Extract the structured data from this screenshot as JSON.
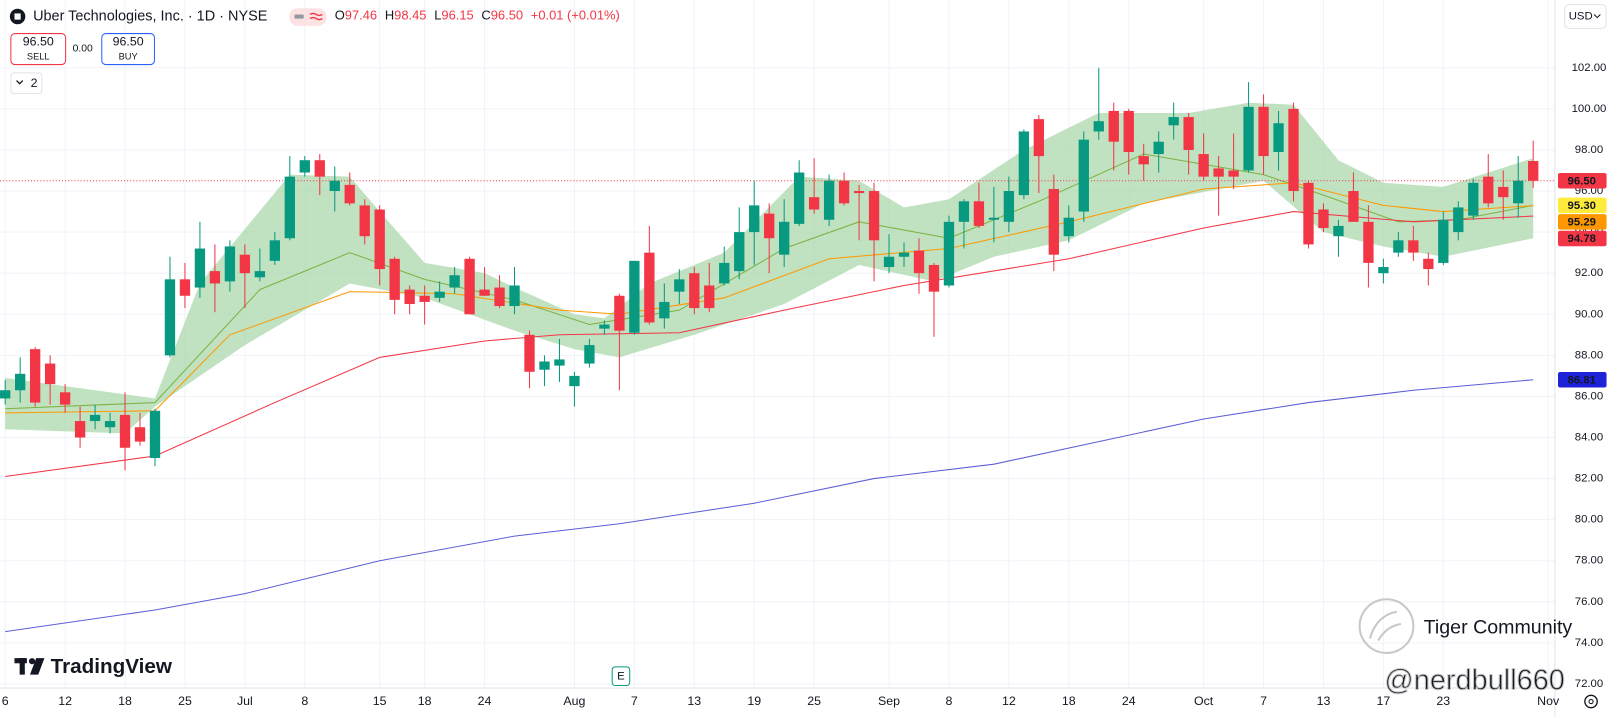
{
  "header": {
    "title": "Uber Technologies, Inc. · 1D · NYSE",
    "ohlc": [
      {
        "label": "O",
        "value": 97.46
      },
      {
        "label": "H",
        "value": 98.45
      },
      {
        "label": "L",
        "value": 96.15
      },
      {
        "label": "C",
        "value": 96.5,
        "text": "96.50"
      }
    ],
    "change": "+0.01 (+0.01%)",
    "sell": {
      "price": "96.50",
      "label": "SELL"
    },
    "spread": "0.00",
    "buy": {
      "price": "96.50",
      "label": "BUY"
    },
    "indicators": "2",
    "currency": "USD"
  },
  "branding": {
    "logo": "TradingView",
    "earnings": "E",
    "watermark": "Tiger Community",
    "handle": "@nerdbull660"
  },
  "chart_data": {
    "type": "candlestick",
    "categories": [
      "6",
      null,
      null,
      null,
      "12",
      null,
      null,
      null,
      "18",
      null,
      null,
      null,
      "25",
      null,
      null,
      null,
      "Jul",
      null,
      null,
      null,
      "8",
      null,
      null,
      null,
      null,
      "15",
      null,
      null,
      "18",
      null,
      null,
      null,
      "24",
      null,
      null,
      null,
      null,
      null,
      "Aug",
      null,
      null,
      null,
      "7",
      null,
      null,
      null,
      "13",
      null,
      null,
      null,
      "19",
      null,
      null,
      null,
      "25",
      null,
      null,
      null,
      null,
      "Sep",
      null,
      null,
      null,
      "8",
      null,
      null,
      null,
      "12",
      null,
      null,
      null,
      "18",
      null,
      null,
      null,
      "24",
      null,
      null,
      null,
      null,
      "Oct",
      null,
      null,
      null,
      "7",
      null,
      null,
      null,
      "13",
      null,
      null,
      null,
      "17",
      null,
      null,
      null,
      "23",
      null,
      null,
      null,
      null,
      null,
      null,
      "Nov"
    ],
    "open": [
      85.9,
      86.3,
      88.3,
      87.6,
      86.2,
      84.8,
      84.8,
      84.5,
      85.1,
      84.5,
      83.0,
      88.0,
      91.7,
      91.3,
      92.1,
      91.6,
      92.9,
      91.8,
      92.6,
      93.7,
      96.9,
      97.5,
      96.0,
      96.3,
      95.3,
      95.1,
      92.7,
      91.2,
      90.9,
      90.8,
      91.3,
      92.7,
      91.2,
      91.3,
      90.4,
      89.0,
      87.3,
      87.5,
      86.5,
      87.6,
      89.3,
      90.9,
      89.1,
      93.0,
      89.8,
      91.1,
      92.0,
      91.4,
      91.5,
      92.1,
      94.0,
      94.9,
      92.9,
      94.4,
      95.7,
      94.6,
      96.5,
      96.0,
      96.0,
      92.3,
      92.8,
      93.1,
      92.4,
      91.4,
      94.5,
      95.5,
      94.6,
      94.5,
      95.8,
      99.5,
      96.1,
      93.8,
      95.0,
      98.9,
      99.9,
      99.9,
      97.7,
      97.8,
      99.2,
      99.6,
      97.8,
      97.1,
      97.0,
      97.0,
      100.1,
      97.9,
      100.0,
      96.4,
      95.1,
      93.8,
      96.0,
      94.5,
      92.0,
      93.0,
      93.6,
      92.7,
      92.5,
      94.0,
      94.8,
      96.7,
      96.2,
      95.4,
      97.46,
      null
    ],
    "high": [
      86.8,
      87.9,
      88.4,
      88.0,
      86.6,
      85.5,
      85.6,
      85.2,
      86.2,
      85.2,
      85.4,
      92.8,
      92.5,
      94.5,
      93.4,
      93.6,
      93.4,
      93.2,
      94.0,
      97.7,
      97.7,
      97.8,
      97.2,
      96.9,
      95.6,
      95.3,
      92.8,
      91.4,
      91.4,
      91.6,
      92.3,
      92.8,
      92.3,
      91.9,
      92.3,
      89.2,
      88.0,
      88.8,
      87.2,
      88.8,
      89.7,
      91.0,
      92.6,
      94.3,
      91.5,
      92.2,
      92.3,
      92.5,
      93.3,
      95.2,
      96.5,
      95.4,
      95.6,
      97.5,
      97.6,
      96.8,
      96.9,
      96.3,
      96.4,
      93.9,
      93.5,
      93.7,
      92.5,
      94.8,
      95.6,
      96.4,
      96.2,
      96.7,
      99.0,
      99.7,
      96.8,
      95.3,
      98.9,
      102.0,
      100.3,
      100.0,
      98.3,
      98.9,
      100.3,
      99.8,
      98.8,
      97.7,
      98.8,
      101.3,
      100.7,
      99.9,
      100.3,
      96.5,
      95.4,
      94.6,
      96.9,
      95.3,
      92.7,
      94.0,
      94.3,
      93.0,
      95.0,
      95.5,
      96.6,
      97.8,
      97.0,
      97.7,
      98.45,
      null
    ],
    "low": [
      85.6,
      85.7,
      85.5,
      85.6,
      85.2,
      83.5,
      84.4,
      84.2,
      82.4,
      83.6,
      82.6,
      87.9,
      90.3,
      90.8,
      90.1,
      91.1,
      90.3,
      91.6,
      92.4,
      93.6,
      96.7,
      95.8,
      95.0,
      95.3,
      93.4,
      91.4,
      90.0,
      90.0,
      89.5,
      90.6,
      91.0,
      90.0,
      90.9,
      90.3,
      90.0,
      86.4,
      86.5,
      86.7,
      85.5,
      87.4,
      89.0,
      86.3,
      89.0,
      89.5,
      89.3,
      90.5,
      90.0,
      90.1,
      91.4,
      91.7,
      92.4,
      92.0,
      92.3,
      94.3,
      94.9,
      94.3,
      95.3,
      93.6,
      91.6,
      92.0,
      92.3,
      91.0,
      88.9,
      91.3,
      93.2,
      94.2,
      93.5,
      94.0,
      95.6,
      95.9,
      92.1,
      93.5,
      94.5,
      98.5,
      97.0,
      96.8,
      96.5,
      96.9,
      98.5,
      96.8,
      96.5,
      94.8,
      96.1,
      96.9,
      96.8,
      97.0,
      95.5,
      93.2,
      94.0,
      92.8,
      94.5,
      91.3,
      91.5,
      92.8,
      92.6,
      91.4,
      92.4,
      93.6,
      94.6,
      95.2,
      94.6,
      94.7,
      96.15,
      null
    ],
    "close": [
      86.3,
      87.1,
      85.7,
      86.6,
      85.6,
      84.0,
      85.1,
      84.8,
      83.5,
      83.8,
      85.3,
      91.7,
      90.9,
      93.2,
      91.5,
      93.3,
      92.0,
      92.1,
      93.6,
      96.7,
      97.5,
      96.7,
      96.5,
      95.4,
      93.8,
      92.2,
      90.7,
      90.5,
      90.6,
      91.1,
      91.9,
      90.0,
      90.9,
      90.4,
      91.4,
      87.2,
      87.7,
      87.8,
      87.0,
      88.5,
      89.5,
      89.2,
      92.6,
      89.6,
      90.6,
      91.7,
      90.3,
      90.3,
      92.5,
      94.0,
      95.3,
      93.7,
      94.5,
      96.9,
      95.1,
      96.5,
      95.4,
      95.9,
      93.6,
      92.8,
      93.0,
      92.0,
      91.1,
      94.5,
      95.5,
      94.3,
      94.7,
      96.0,
      98.9,
      97.7,
      92.9,
      94.7,
      98.5,
      99.4,
      98.4,
      97.9,
      97.3,
      98.4,
      99.6,
      98.0,
      96.7,
      96.7,
      96.7,
      100.1,
      97.7,
      99.3,
      96.0,
      93.4,
      94.2,
      94.3,
      94.5,
      92.5,
      92.3,
      93.6,
      93.0,
      92.2,
      94.6,
      95.2,
      96.4,
      95.4,
      95.7,
      96.5,
      96.5,
      null
    ],
    "up_color": "#089981",
    "down_color": "#f23645",
    "ylim": [
      71.8,
      105.3
    ],
    "yticks": [
      {
        "value": 72,
        "label": "72.00"
      },
      {
        "value": 74,
        "label": "74.00"
      },
      {
        "value": 76,
        "label": "76.00"
      },
      {
        "value": 78,
        "label": "78.00"
      },
      {
        "value": 80,
        "label": "80.00"
      },
      {
        "value": 82,
        "label": "82.00"
      },
      {
        "value": 84,
        "label": "84.00"
      },
      {
        "value": 86,
        "label": "86.00"
      },
      {
        "value": 88,
        "label": "88.00"
      },
      {
        "value": 90,
        "label": "90.00"
      },
      {
        "value": 92,
        "label": "92.00"
      },
      {
        "value": 94,
        "label": "94.00"
      },
      {
        "value": 96,
        "label": "96.00"
      },
      {
        "value": 98,
        "label": "98.00"
      },
      {
        "value": 100,
        "label": "100.00"
      },
      {
        "value": 102,
        "label": "102.00"
      }
    ],
    "grid": true,
    "price_line": {
      "value": 96.5,
      "label": "96.50",
      "color": "#f23645"
    },
    "band": {
      "color": "#a5d6a7",
      "upper": {
        "x": [
          0,
          10,
          13,
          19,
          23,
          25,
          28,
          32,
          34,
          38,
          40,
          43,
          48,
          53,
          57,
          60,
          63,
          68,
          73,
          79,
          83,
          86,
          89,
          92,
          96,
          102
        ],
        "values": [
          86.9,
          85.9,
          91.5,
          96.8,
          96.7,
          95.0,
          92.5,
          92.0,
          91.3,
          90.0,
          89.8,
          91.5,
          93.0,
          96.7,
          96.5,
          95.2,
          95.6,
          98.0,
          99.8,
          99.8,
          100.3,
          100.2,
          97.5,
          96.4,
          96.2,
          97.6
        ]
      },
      "lower": {
        "x": [
          0,
          8,
          10,
          16,
          23,
          28,
          34,
          38,
          41,
          46,
          52,
          57,
          62,
          66,
          71,
          76,
          84,
          88,
          92,
          96,
          102
        ],
        "values": [
          84.4,
          84.2,
          85.5,
          88.5,
          91.5,
          90.8,
          89.2,
          88.3,
          87.9,
          89.0,
          90.5,
          92.4,
          91.6,
          92.8,
          93.6,
          95.4,
          96.5,
          94.0,
          93.3,
          92.8,
          93.7
        ]
      }
    },
    "lines": [
      {
        "color": "#7cb342",
        "x": [
          0,
          10,
          17,
          23,
          28,
          34,
          39,
          45,
          52,
          57,
          63,
          69,
          76,
          84,
          88,
          93,
          97,
          102
        ],
        "values": [
          85.4,
          85.7,
          91.2,
          93.0,
          91.7,
          90.7,
          89.5,
          90.2,
          93.2,
          94.5,
          93.7,
          95.5,
          97.8,
          96.8,
          95.8,
          94.5,
          94.6,
          95.3
        ],
        "last_label": "95.30",
        "badge_color": "#ffeb3b",
        "badge_text": "#131722"
      },
      {
        "color": "#ff9800",
        "x": [
          0,
          10,
          15,
          23,
          30,
          37,
          41,
          48,
          55,
          63,
          71,
          80,
          86,
          92,
          96,
          102
        ],
        "values": [
          85.2,
          85.3,
          89.0,
          91.1,
          91.0,
          90.2,
          90.0,
          90.8,
          92.7,
          93.2,
          94.5,
          96.1,
          96.4,
          95.3,
          95.0,
          95.29
        ],
        "last_label": "95.29",
        "badge_color": "#ff9800",
        "badge_text": "#ffffff"
      },
      {
        "color": "#f23645",
        "x": [
          0,
          10,
          18,
          25,
          32,
          37,
          45,
          52,
          60,
          71,
          80,
          86,
          94,
          102
        ],
        "values": [
          82.1,
          83.1,
          85.7,
          87.9,
          88.7,
          89.0,
          89.1,
          90.2,
          91.4,
          92.7,
          94.2,
          95.0,
          94.5,
          94.78
        ],
        "last_label": "94.78",
        "badge_color": "#f23645",
        "badge_text": "#ffffff"
      },
      {
        "color": "#5b5fd6",
        "x": [
          0,
          10,
          16,
          25,
          34,
          41,
          50,
          58,
          66,
          73,
          80,
          87,
          94,
          102
        ],
        "values": [
          74.55,
          75.6,
          76.4,
          78.0,
          79.2,
          79.8,
          80.8,
          82.0,
          82.7,
          83.8,
          84.9,
          85.7,
          86.3,
          86.81
        ],
        "last_label": "86.81",
        "badge_color": "#1e22d9",
        "badge_text": "#ffffff"
      }
    ]
  }
}
